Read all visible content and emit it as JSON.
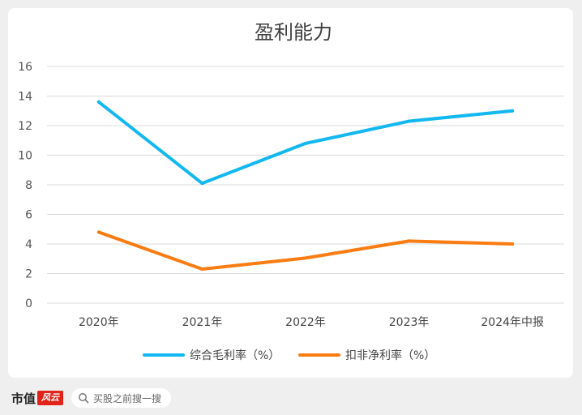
{
  "chart_data": {
    "type": "line",
    "title": "盈利能力",
    "categories": [
      "2020年",
      "2021年",
      "2022年",
      "2023年",
      "2024年中报"
    ],
    "series": [
      {
        "name": "综合毛利率（%）",
        "color": "#12b8ef",
        "values": [
          13.6,
          8.1,
          10.8,
          12.3,
          13.0
        ]
      },
      {
        "name": "扣非净利率（%）",
        "color": "#fa7c12",
        "values": [
          4.8,
          2.3,
          3.05,
          4.2,
          4.0
        ]
      }
    ],
    "ylim": [
      0,
      16
    ],
    "yticks": [
      0,
      2,
      4,
      6,
      8,
      10,
      12,
      14,
      16
    ],
    "grid": true,
    "legend_position": "bottom"
  },
  "footer": {
    "brand": "市值",
    "brand_mark": "风云",
    "search_placeholder": "买股之前搜一搜"
  },
  "icons": {
    "search": "search-icon"
  }
}
